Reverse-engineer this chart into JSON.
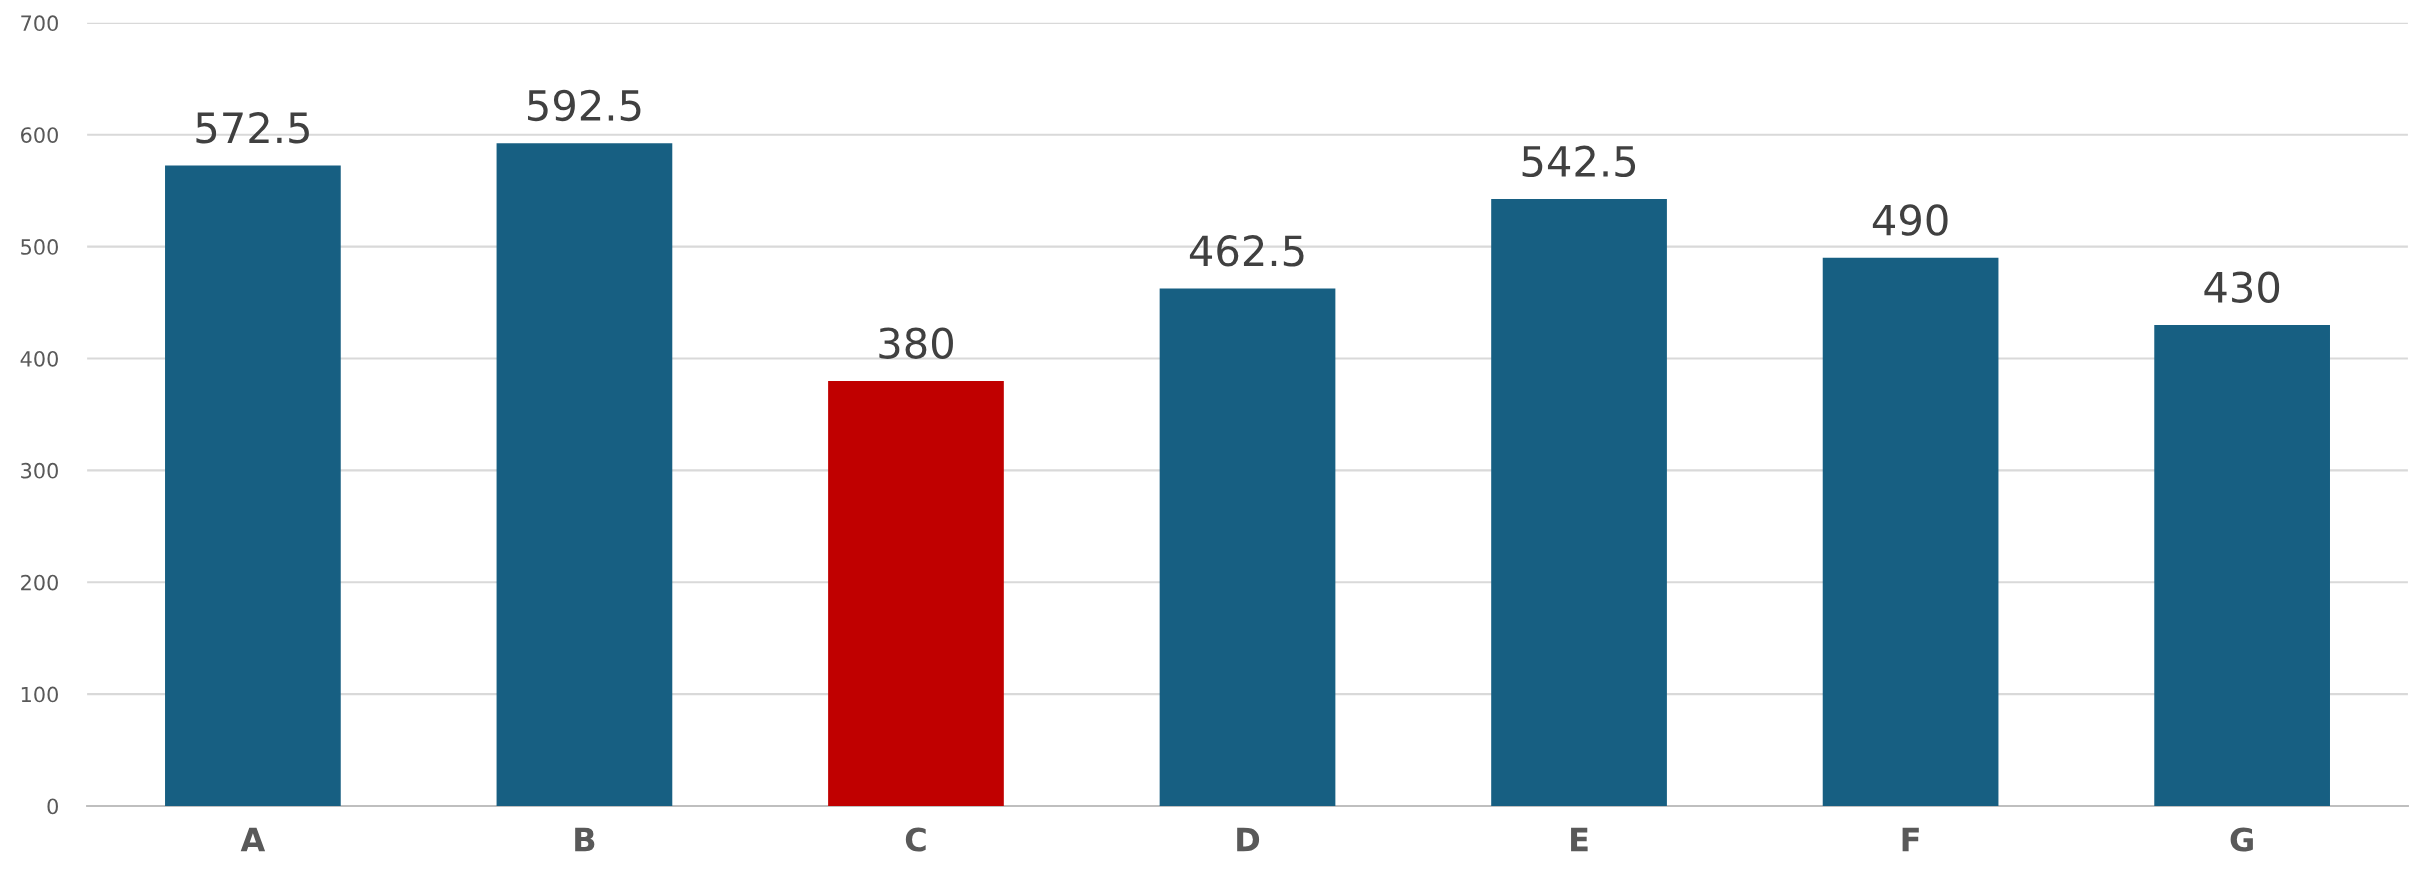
{
  "chart_data": {
    "type": "bar",
    "categories": [
      "A",
      "B",
      "C",
      "D",
      "E",
      "F",
      "G"
    ],
    "values": [
      572.5,
      592.5,
      380,
      462.5,
      542.5,
      490,
      430
    ],
    "colors": [
      "#175f82",
      "#175f82",
      "#c00000",
      "#175f82",
      "#175f82",
      "#175f82",
      "#175f82"
    ],
    "ylim": [
      0,
      700
    ],
    "yticks": [
      0,
      100,
      200,
      300,
      400,
      500,
      600,
      700
    ],
    "grid": "y",
    "data_labels": true,
    "legend": false
  }
}
